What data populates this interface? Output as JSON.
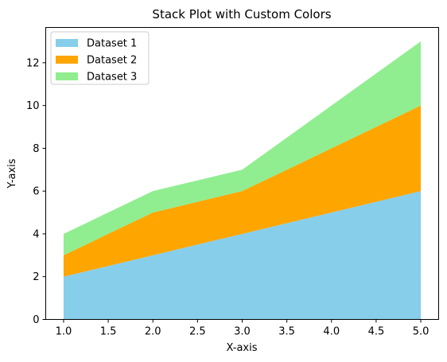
{
  "chart_data": {
    "type": "area",
    "stacked": true,
    "title": "Stack Plot with Custom Colors",
    "xlabel": "X-axis",
    "ylabel": "Y-axis",
    "x": [
      1,
      2,
      3,
      4,
      5
    ],
    "xlim": [
      0.8,
      5.2
    ],
    "ylim": [
      0,
      13.65
    ],
    "xticks": [
      1.0,
      1.5,
      2.0,
      2.5,
      3.0,
      3.5,
      4.0,
      4.5,
      5.0
    ],
    "xtick_labels": [
      "1.0",
      "1.5",
      "2.0",
      "2.5",
      "3.0",
      "3.5",
      "4.0",
      "4.5",
      "5.0"
    ],
    "yticks": [
      0,
      2,
      4,
      6,
      8,
      10,
      12
    ],
    "ytick_labels": [
      "0",
      "2",
      "4",
      "6",
      "8",
      "10",
      "12"
    ],
    "grid": false,
    "legend_position": "top-left",
    "series": [
      {
        "name": "Dataset 1",
        "values": [
          2,
          3,
          4,
          5,
          6
        ],
        "color": "#87ceeb"
      },
      {
        "name": "Dataset 2",
        "values": [
          1,
          2,
          2,
          3,
          4
        ],
        "color": "#ffa500"
      },
      {
        "name": "Dataset 3",
        "values": [
          1,
          1,
          1,
          2,
          3
        ],
        "color": "#90ee90"
      }
    ]
  }
}
